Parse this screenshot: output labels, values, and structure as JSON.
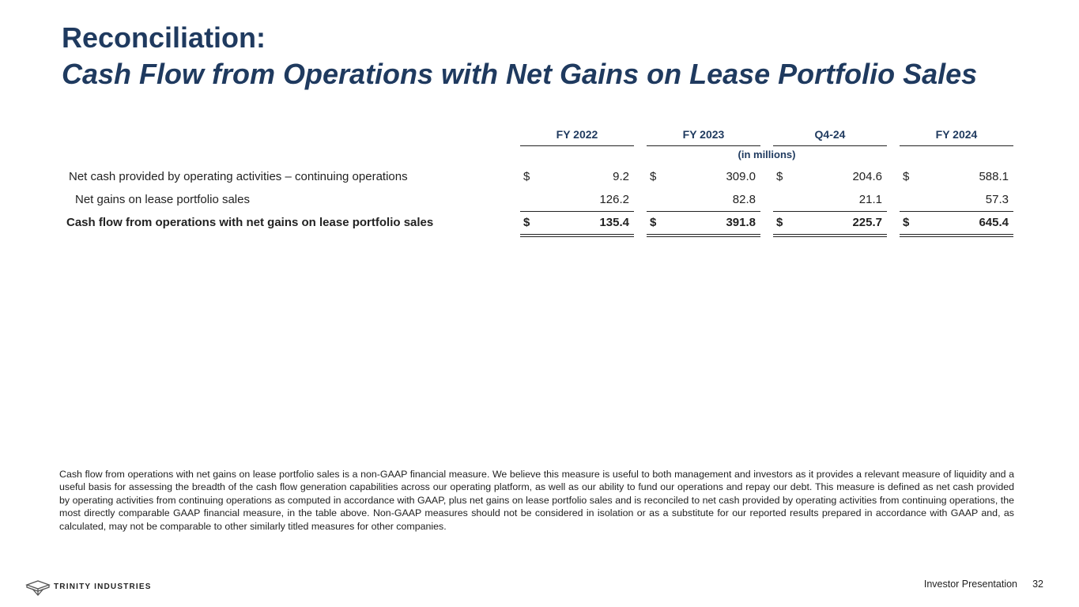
{
  "title": {
    "line1": "Reconciliation:",
    "line2": "Cash Flow from Operations with Net Gains on Lease Portfolio Sales"
  },
  "table": {
    "columns": [
      "FY 2022",
      "FY 2023",
      "Q4-24",
      "FY 2024"
    ],
    "units": "(in millions)",
    "rows": [
      {
        "label": "Net cash provided by operating activities – continuing operations",
        "currency": "$",
        "values": [
          "9.2",
          "309.0",
          "204.6",
          "588.1"
        ]
      },
      {
        "label": "Net gains on lease portfolio sales",
        "currency": "",
        "values": [
          "126.2",
          "82.8",
          "21.1",
          "57.3"
        ]
      },
      {
        "label": "Cash flow from operations with net gains on lease portfolio sales",
        "currency": "$",
        "values": [
          "135.4",
          "391.8",
          "225.7",
          "645.4"
        ]
      }
    ]
  },
  "footnote": "Cash flow from operations with net gains on lease portfolio sales is a non-GAAP financial measure. We believe this measure is useful to both management and investors as it provides a relevant measure of liquidity and a useful basis for assessing the breadth of the cash flow generation capabilities across our operating platform, as well as our ability to fund our operations and repay our debt. This measure is defined as net cash provided by operating activities from continuing operations as computed in accordance with GAAP, plus net gains on lease portfolio sales and is reconciled to net cash provided by operating activities from continuing operations, the most directly comparable GAAP financial measure, in the table above. Non-GAAP measures should not be considered in isolation or as a substitute for our reported results prepared in accordance with GAAP and, as calculated, may not be comparable to other similarly titled measures for other companies.",
  "footer": {
    "company": "TRINITY INDUSTRIES",
    "label": "Investor Presentation",
    "page": "32"
  },
  "colors": {
    "title": "#1f3a5f",
    "text": "#222222"
  }
}
